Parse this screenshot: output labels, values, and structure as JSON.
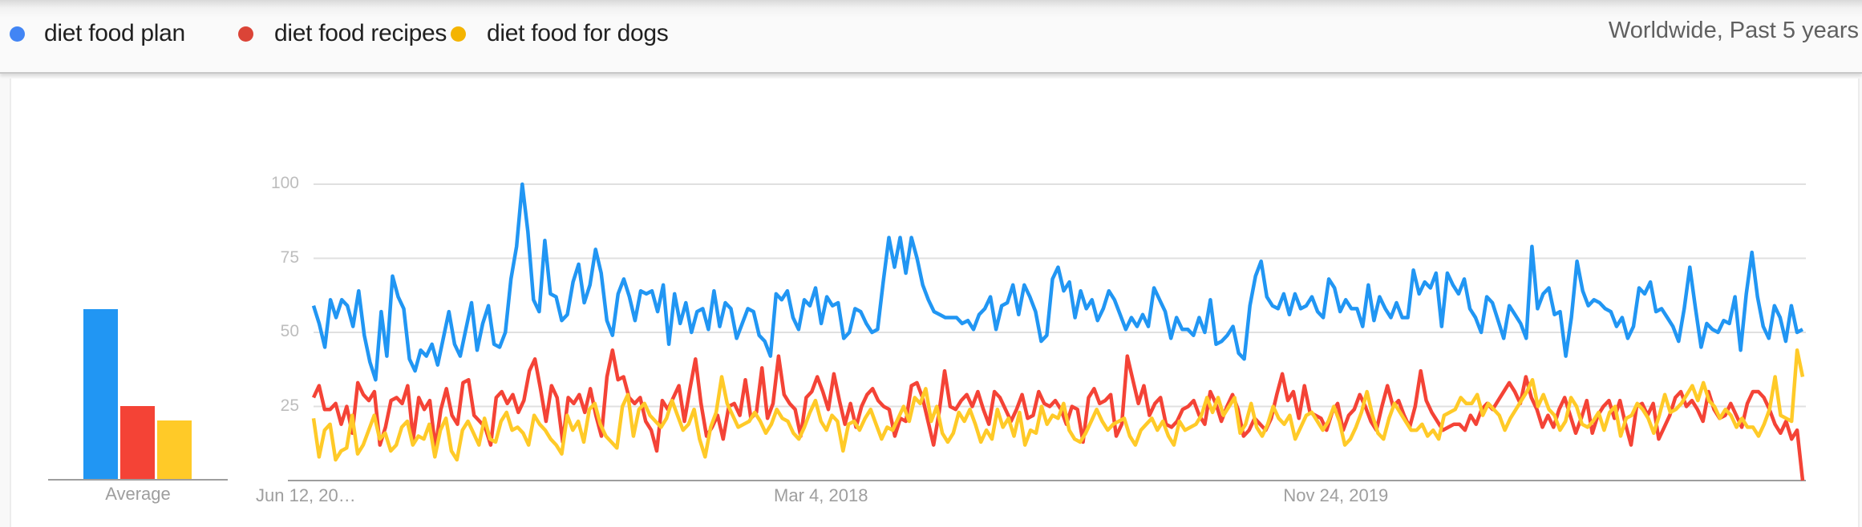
{
  "header": {
    "legend": [
      {
        "label": "diet food plan",
        "color": "#4285f4"
      },
      {
        "label": "diet food recipes",
        "color": "#db4437"
      },
      {
        "label": "diet food for dogs",
        "color": "#f4b400"
      }
    ],
    "region_label": "Worldwide, Past 5 years"
  },
  "average_panel": {
    "label": "Average",
    "bars": [
      {
        "series": "diet food plan",
        "value": 58,
        "color": "#2196f3"
      },
      {
        "series": "diet food recipes",
        "value": 25,
        "color": "#f44336"
      },
      {
        "series": "diet food for dogs",
        "value": 20,
        "color": "#ffca28"
      }
    ]
  },
  "chart_data": {
    "type": "line",
    "title": "",
    "xlabel": "",
    "ylabel": "",
    "ylim": [
      0,
      100
    ],
    "yticks": [
      100,
      75,
      50,
      25
    ],
    "xtick_labels": [
      {
        "label": "Jun 12, 20…",
        "pos": 0.0
      },
      {
        "label": "Mar 4, 2018",
        "pos": 0.34
      },
      {
        "label": "Nov 24, 2019",
        "pos": 0.685
      }
    ],
    "grid": true,
    "legend_position": "top",
    "x_start": "Jun 12, 2016",
    "x_interval": "weekly",
    "series": [
      {
        "name": "diet food plan",
        "color": "#2196f3",
        "values": [
          59,
          53,
          45,
          61,
          55,
          61,
          59,
          52,
          64,
          49,
          40,
          34,
          57,
          42,
          69,
          62,
          58,
          41,
          37,
          44,
          42,
          46,
          39,
          48,
          57,
          46,
          42,
          51,
          60,
          44,
          53,
          59,
          46,
          45,
          50,
          68,
          79,
          100,
          84,
          61,
          57,
          81,
          63,
          62,
          54,
          56,
          67,
          73,
          60,
          66,
          78,
          70,
          54,
          49,
          63,
          68,
          62,
          54,
          64,
          63,
          64,
          57,
          66,
          46,
          63,
          53,
          60,
          50,
          57,
          58,
          51,
          64,
          52,
          60,
          58,
          48,
          53,
          58,
          57,
          49,
          47,
          42,
          63,
          61,
          64,
          55,
          51,
          61,
          59,
          65,
          53,
          62,
          59,
          60,
          48,
          50,
          58,
          57,
          53,
          50,
          51,
          67,
          82,
          72,
          82,
          70,
          82,
          75,
          66,
          61,
          57,
          56,
          55,
          55,
          55,
          53,
          54,
          51,
          56,
          58,
          62,
          51,
          59,
          60,
          66,
          56,
          66,
          62,
          57,
          47,
          49,
          68,
          72,
          64,
          67,
          55,
          64,
          58,
          61,
          54,
          58,
          64,
          61,
          56,
          51,
          55,
          52,
          56,
          52,
          65,
          61,
          57,
          48,
          55,
          51,
          51,
          49,
          55,
          50,
          61,
          46,
          47,
          49,
          52,
          43,
          41,
          59,
          69,
          74,
          62,
          59,
          58,
          63,
          56,
          63,
          58,
          59,
          62,
          57,
          55,
          68,
          65,
          57,
          61,
          58,
          58,
          52,
          66,
          54,
          62,
          58,
          55,
          60,
          55,
          55,
          71,
          63,
          67,
          65,
          70,
          52,
          70,
          66,
          63,
          68,
          58,
          55,
          50,
          62,
          60,
          54,
          48,
          59,
          56,
          53,
          48,
          79,
          58,
          63,
          65,
          56,
          57,
          42,
          55,
          74,
          64,
          59,
          61,
          60,
          58,
          57,
          52,
          55,
          48,
          52,
          65,
          63,
          67,
          57,
          58,
          55,
          52,
          47,
          58,
          72,
          58,
          45,
          53,
          51,
          50,
          54,
          53,
          62,
          44,
          63,
          77,
          62,
          52,
          48,
          59,
          55,
          47,
          59,
          50,
          51
        ]
      },
      {
        "name": "diet food recipes",
        "color": "#f44336",
        "values": [
          28,
          32,
          24,
          24,
          26,
          19,
          25,
          16,
          33,
          29,
          27,
          30,
          12,
          18,
          27,
          28,
          26,
          32,
          14,
          28,
          24,
          27,
          11,
          24,
          31,
          22,
          19,
          33,
          34,
          22,
          20,
          18,
          12,
          28,
          30,
          26,
          29,
          23,
          27,
          37,
          41,
          31,
          20,
          32,
          28,
          13,
          28,
          26,
          29,
          23,
          31,
          22,
          15,
          35,
          44,
          34,
          35,
          28,
          26,
          28,
          20,
          17,
          10,
          27,
          24,
          28,
          32,
          20,
          31,
          41,
          26,
          15,
          18,
          22,
          14,
          25,
          26,
          22,
          34,
          21,
          23,
          38,
          21,
          26,
          42,
          29,
          26,
          24,
          15,
          28,
          30,
          35,
          30,
          24,
          36,
          27,
          19,
          26,
          18,
          25,
          29,
          31,
          27,
          25,
          24,
          15,
          21,
          20,
          32,
          33,
          28,
          20,
          12,
          23,
          37,
          25,
          24,
          27,
          29,
          25,
          30,
          24,
          19,
          30,
          28,
          24,
          20,
          24,
          29,
          21,
          22,
          30,
          26,
          25,
          27,
          24,
          19,
          25,
          24,
          13,
          28,
          31,
          26,
          27,
          29,
          15,
          19,
          42,
          34,
          26,
          32,
          22,
          26,
          28,
          19,
          18,
          20,
          24,
          25,
          27,
          22,
          19,
          30,
          26,
          20,
          25,
          29,
          24,
          15,
          17,
          21,
          19,
          17,
          21,
          29,
          36,
          27,
          30,
          21,
          32,
          23,
          22,
          21,
          17,
          23,
          26,
          17,
          22,
          24,
          29,
          25,
          20,
          17,
          25,
          32,
          25,
          27,
          22,
          18,
          25,
          37,
          27,
          23,
          20,
          17,
          18,
          19,
          19,
          17,
          22,
          19,
          24,
          26,
          24,
          27,
          30,
          33,
          30,
          26,
          35,
          28,
          24,
          18,
          22,
          18,
          24,
          28,
          22,
          16,
          21,
          27,
          16,
          22,
          25,
          27,
          21,
          27,
          19,
          12,
          25,
          26,
          22,
          26,
          14,
          18,
          22,
          28,
          30,
          25,
          27,
          24,
          20,
          30,
          24,
          21,
          22,
          26,
          22,
          18,
          26,
          30,
          30,
          28,
          24,
          19,
          16,
          20,
          14,
          17,
          0
        ]
      },
      {
        "name": "diet food for dogs",
        "color": "#ffca28",
        "values": [
          21,
          8,
          17,
          19,
          7,
          10,
          11,
          22,
          9,
          12,
          17,
          22,
          14,
          16,
          10,
          12,
          18,
          20,
          12,
          15,
          14,
          19,
          8,
          17,
          21,
          10,
          7,
          17,
          20,
          16,
          12,
          21,
          14,
          13,
          20,
          23,
          17,
          18,
          16,
          12,
          22,
          19,
          17,
          14,
          12,
          9,
          22,
          17,
          20,
          13,
          24,
          26,
          19,
          15,
          13,
          11,
          25,
          29,
          15,
          24,
          26,
          22,
          20,
          18,
          21,
          27,
          22,
          17,
          19,
          24,
          14,
          8,
          18,
          23,
          35,
          26,
          22,
          18,
          19,
          20,
          23,
          20,
          16,
          19,
          24,
          21,
          20,
          16,
          14,
          18,
          23,
          27,
          20,
          17,
          22,
          20,
          10,
          19,
          20,
          17,
          21,
          24,
          19,
          14,
          18,
          17,
          21,
          25,
          20,
          28,
          26,
          31,
          20,
          25,
          16,
          13,
          16,
          23,
          20,
          24,
          19,
          13,
          17,
          14,
          24,
          18,
          21,
          15,
          23,
          12,
          17,
          16,
          25,
          19,
          22,
          21,
          26,
          17,
          14,
          13,
          16,
          20,
          24,
          20,
          17,
          19,
          20,
          21,
          15,
          12,
          17,
          19,
          21,
          17,
          20,
          15,
          12,
          20,
          17,
          18,
          19,
          22,
          28,
          23,
          28,
          22,
          25,
          28,
          16,
          19,
          26,
          18,
          15,
          19,
          25,
          21,
          19,
          22,
          14,
          18,
          22,
          23,
          20,
          17,
          20,
          25,
          20,
          12,
          14,
          18,
          23,
          30,
          22,
          16,
          14,
          21,
          26,
          23,
          20,
          17,
          17,
          19,
          15,
          17,
          14,
          22,
          23,
          24,
          28,
          26,
          26,
          29,
          22,
          26,
          24,
          22,
          17,
          21,
          24,
          27,
          30,
          34,
          25,
          29,
          24,
          22,
          17,
          20,
          28,
          25,
          19,
          18,
          20,
          23,
          17,
          23,
          25,
          15,
          21,
          22,
          26,
          24,
          21,
          16,
          22,
          29,
          23,
          24,
          26,
          29,
          32,
          27,
          33,
          27,
          25,
          21,
          24,
          22,
          18,
          21,
          18,
          18,
          15,
          19,
          24,
          35,
          22,
          21,
          20,
          44,
          35
        ]
      }
    ]
  }
}
